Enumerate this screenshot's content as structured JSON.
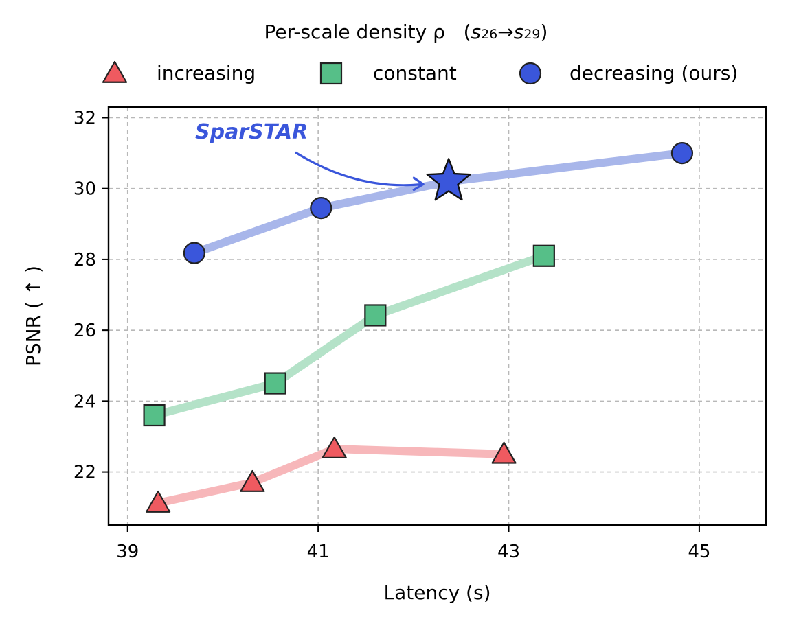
{
  "chart_data": {
    "type": "line",
    "legend": {
      "title_prefix": "Per-scale density ρ",
      "title_range": {
        "open": "(",
        "from_base": "s",
        "from_sub": "26",
        "arrow": "→",
        "to_base": "s",
        "to_sub": "29",
        "close": ")"
      },
      "placement": "top-center"
    },
    "xlabel": "Latency (s)",
    "ylabel": "PSNR ( ↑ )",
    "xlim": [
      38.8,
      45.7
    ],
    "ylim": [
      20.5,
      32.3
    ],
    "xticks": [
      39,
      41,
      43,
      45
    ],
    "yticks": [
      22,
      24,
      26,
      28,
      30,
      32
    ],
    "grid": true,
    "series": [
      {
        "name": "increasing",
        "marker": "triangle",
        "color": "#ef5a60",
        "line_color": "#f7b7ba",
        "x": [
          39.32,
          40.31,
          41.17,
          42.95
        ],
        "y": [
          21.12,
          21.7,
          22.65,
          22.5
        ]
      },
      {
        "name": "constant",
        "marker": "square",
        "color": "#56bf88",
        "line_color": "#b4e2c8",
        "x": [
          39.28,
          40.55,
          41.6,
          43.37
        ],
        "y": [
          23.6,
          24.5,
          26.42,
          28.1
        ]
      },
      {
        "name": "decreasing (ours)",
        "marker": "circle",
        "color": "#3a56db",
        "line_color": "#a8b6ea",
        "x": [
          39.7,
          41.03,
          42.37,
          44.82
        ],
        "y": [
          28.18,
          29.45,
          30.2,
          31.0
        ]
      }
    ],
    "highlight": {
      "label": "SparSTAR",
      "color": "#3a56db",
      "x": 42.37,
      "y": 30.2
    }
  }
}
